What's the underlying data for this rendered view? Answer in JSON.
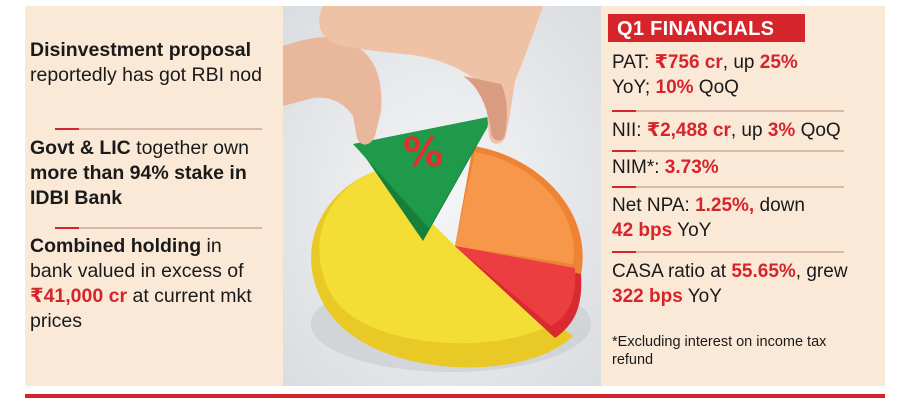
{
  "left": {
    "b1": {
      "t1": "Disinvestment",
      "t2": "proposal",
      "t3": " reportedly has got RBI nod"
    },
    "b2": {
      "t1": "Govt & LIC",
      "t2": " together own ",
      "t3": "more than 94%",
      "t4": " stake in IDBI Bank"
    },
    "b3": {
      "t1": "Combined holding",
      "t2": " in bank valued in excess of ",
      "t3": "₹41,000 cr",
      "t4": " at current mkt prices"
    }
  },
  "right": {
    "title": "Q1 FINANCIALS",
    "pat": {
      "label": "PAT: ",
      "v1": "₹756 cr",
      "t1": ", up ",
      "v2": "25%",
      "t2": " YoY; ",
      "v3": "10%",
      "t3": " QoQ"
    },
    "nii": {
      "label": "NII: ",
      "v1": "₹2,488 cr",
      "t1": ", up ",
      "v2": "3%",
      "t2": " QoQ"
    },
    "nim": {
      "label": "NIM*: ",
      "v1": "3.73%"
    },
    "npa": {
      "label": "Net NPA: ",
      "v1": "1.25%,",
      "t1": " down ",
      "v2": "42 bps",
      "t2": " YoY"
    },
    "casa": {
      "label": "CASA ratio at ",
      "v1": "55.65%",
      "t1": ", grew ",
      "v2": "322 bps",
      "t2": " YoY"
    },
    "footnote": "*Excluding interest on income tax refund"
  },
  "photo": {
    "pie_symbol": "%",
    "icons": [
      "hand-icon",
      "pie-chart-icon",
      "percent-icon"
    ],
    "colors": {
      "yellow": "#f2dc2a",
      "orange": "#f4873a",
      "red": "#e8333a",
      "green": "#1f9a4b"
    }
  },
  "colors": {
    "accent": "#d6242b",
    "panel_bg": "#fbe9d7"
  }
}
